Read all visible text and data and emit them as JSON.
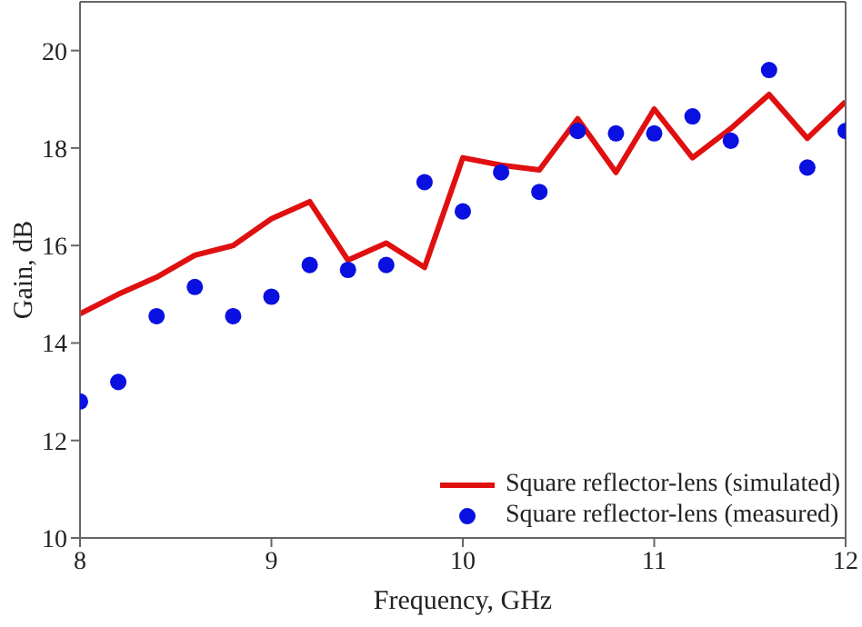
{
  "chart_data": {
    "type": "line",
    "xlabel": "Frequency, GHz",
    "ylabel": "Gain, dB",
    "x": [
      8,
      8.2,
      8.4,
      8.6,
      8.8,
      9,
      9.2,
      9.4,
      9.6,
      9.8,
      10,
      10.2,
      10.4,
      10.6,
      10.8,
      11,
      11.2,
      11.4,
      11.6,
      11.8,
      12
    ],
    "series": [
      {
        "name": "Square reflector-lens (simulated)",
        "color": "#e01010",
        "marker": "none",
        "values": [
          14.6,
          15.0,
          15.35,
          15.8,
          16.0,
          16.55,
          16.9,
          15.7,
          16.05,
          15.55,
          17.8,
          17.65,
          17.55,
          18.6,
          17.5,
          18.8,
          17.8,
          18.4,
          19.1,
          18.2,
          18.95
        ]
      },
      {
        "name": "Square reflector-lens (measured)",
        "type": "scatter",
        "color": "#0a10e0",
        "marker": "circle",
        "values": [
          12.8,
          13.2,
          14.55,
          15.15,
          14.55,
          14.95,
          15.6,
          15.5,
          15.6,
          17.3,
          16.7,
          17.5,
          17.1,
          18.35,
          18.3,
          18.3,
          18.65,
          18.15,
          19.6,
          17.6,
          18.35
        ]
      }
    ],
    "xlim": [
      8,
      12
    ],
    "xticks": [
      8,
      9,
      10,
      11,
      12
    ],
    "ylim": [
      10,
      21
    ],
    "yticks": [
      10,
      12,
      14,
      16,
      18,
      20
    ],
    "grid": false,
    "legend": "bottom right"
  }
}
